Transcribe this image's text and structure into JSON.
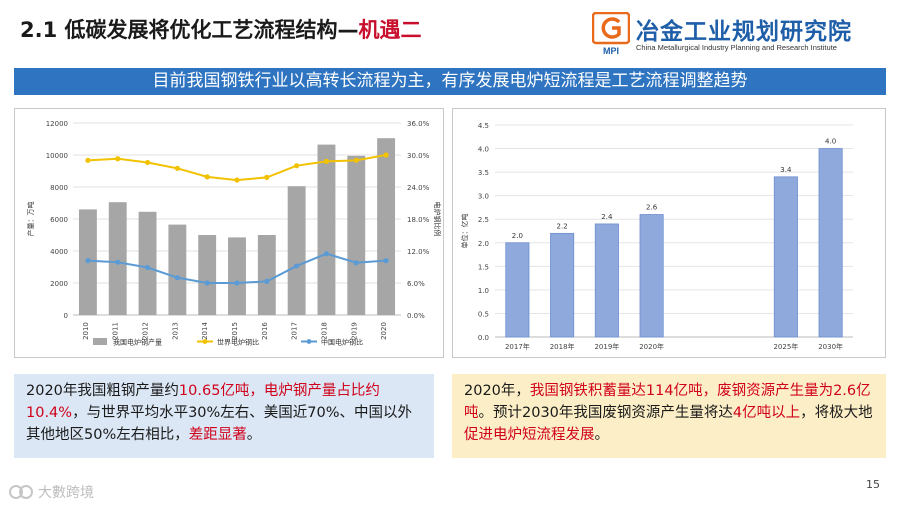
{
  "slide": {
    "title_main": "2.1 低碳发展将优化工艺流程结构—",
    "title_highlight": "机遇二",
    "banner": "目前我国钢铁行业以高转长流程为主，有序发展电炉短流程是工艺流程调整趋势",
    "page_number": "15",
    "watermark": "大數跨境"
  },
  "logo": {
    "cn": "冶金工业规划研究院",
    "en": "China Metallurgical Industry Planning and Research Institute",
    "mark_letters": "MPI"
  },
  "note_left": {
    "p1": "2020年我国粗钢产量约",
    "p2": "10.65亿吨，电炉钢产量占比约10.4%",
    "p3": "，与世界平均水平30%左右、美国近70%、中国以外其他地区50%左右相比，",
    "p4": "差距显著",
    "p5": "。"
  },
  "note_right": {
    "p1": "2020年，",
    "p2": "我国钢铁积蓄量达114亿吨，废钢资源产生量为2.6亿吨",
    "p3": "。预计2030年我国废钢资源产生量将达",
    "p4": "4亿吨以上",
    "p5": "，将极大地",
    "p6": "促进电炉短流程发展",
    "p7": "。"
  },
  "chart_data": [
    {
      "type": "bar",
      "title": "",
      "categories": [
        "2010",
        "2011",
        "2012",
        "2013",
        "2014",
        "2015",
        "2016",
        "2017",
        "2018",
        "2019",
        "2020"
      ],
      "series": [
        {
          "name": "我国电炉钢产量",
          "kind": "bar",
          "axis": "left",
          "color": "#a6a6a6",
          "values": [
            6600,
            7050,
            6450,
            5650,
            5000,
            4850,
            5000,
            8050,
            10650,
            9950,
            11050
          ]
        },
        {
          "name": "世界电炉钢比",
          "kind": "line",
          "axis": "right",
          "color": "#f2c200",
          "values": [
            29.0,
            29.3,
            28.6,
            27.5,
            25.9,
            25.3,
            25.8,
            28.0,
            28.8,
            29.0,
            30.0
          ]
        },
        {
          "name": "中国电炉钢比",
          "kind": "line",
          "axis": "right",
          "color": "#5b9bd5",
          "values": [
            10.2,
            9.9,
            8.9,
            7.0,
            6.0,
            6.0,
            6.3,
            9.2,
            11.5,
            9.8,
            10.2
          ]
        }
      ],
      "ylabel": "产量：万吨",
      "ylim": [
        0,
        12000
      ],
      "yticks": [
        "0",
        "2000",
        "4000",
        "6000",
        "8000",
        "10000",
        "12000"
      ],
      "y2label": "电炉钢比例",
      "y2lim": [
        0,
        36
      ],
      "y2ticks": [
        "0.0%",
        "6.0%",
        "12.0%",
        "18.0%",
        "24.0%",
        "30.0%",
        "36.0%"
      ],
      "legend_position": "bottom",
      "grid": true
    },
    {
      "type": "bar",
      "title": "",
      "categories": [
        "2017年",
        "2018年",
        "2019年",
        "2020年",
        "",
        "",
        "2025年",
        "2030年"
      ],
      "values": [
        2.0,
        2.2,
        2.4,
        2.6,
        null,
        null,
        3.4,
        4.0
      ],
      "value_labels": [
        "2.0",
        "2.2",
        "2.4",
        "2.6",
        "",
        "",
        "3.4",
        "4.0"
      ],
      "color": "#8fa9dc",
      "ylabel": "单位：亿吨",
      "ylim": [
        0,
        4.5
      ],
      "yticks": [
        "0.0",
        "0.5",
        "1.0",
        "1.5",
        "2.0",
        "2.5",
        "3.0",
        "3.5",
        "4.0",
        "4.5"
      ],
      "legend_position": "none",
      "grid": true
    }
  ]
}
